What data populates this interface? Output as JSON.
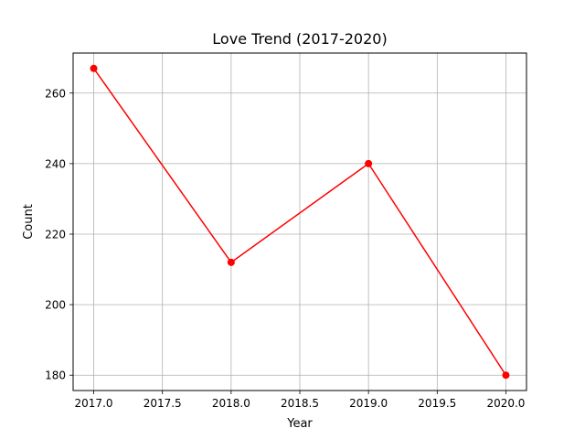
{
  "chart_data": {
    "type": "line",
    "title": "Love Trend (2017-2020)",
    "xlabel": "Year",
    "ylabel": "Count",
    "x": [
      2017,
      2018,
      2019,
      2020
    ],
    "series": [
      {
        "values": [
          267,
          212,
          240,
          180
        ],
        "color": "#ff0000",
        "marker": "circle"
      }
    ],
    "xlim": [
      2016.85,
      2020.15
    ],
    "ylim": [
      175.65,
      271.35
    ],
    "xticks": [
      2017.0,
      2017.5,
      2018.0,
      2018.5,
      2019.0,
      2019.5,
      2020.0
    ],
    "xtick_labels": [
      "2017.0",
      "2017.5",
      "2018.0",
      "2018.5",
      "2019.0",
      "2019.5",
      "2020.0"
    ],
    "yticks": [
      180,
      200,
      220,
      240,
      260
    ],
    "ytick_labels": [
      "180",
      "200",
      "220",
      "240",
      "260"
    ],
    "grid": true,
    "grid_color": "#b0b0b0",
    "line_color": "#ff0000"
  }
}
